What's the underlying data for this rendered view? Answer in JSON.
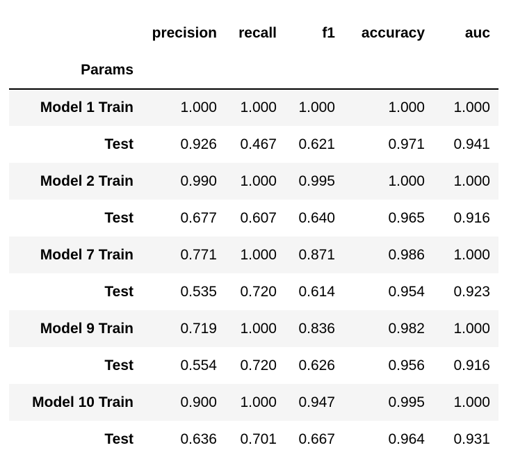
{
  "table": {
    "columns": [
      "precision",
      "recall",
      "f1",
      "accuracy",
      "auc"
    ],
    "index_name": "Params",
    "rows": [
      {
        "label": "Model 1 Train",
        "values": [
          "1.000",
          "1.000",
          "1.000",
          "1.000",
          "1.000"
        ]
      },
      {
        "label": "Test",
        "values": [
          "0.926",
          "0.467",
          "0.621",
          "0.971",
          "0.941"
        ]
      },
      {
        "label": "Model 2 Train",
        "values": [
          "0.990",
          "1.000",
          "0.995",
          "1.000",
          "1.000"
        ]
      },
      {
        "label": "Test",
        "values": [
          "0.677",
          "0.607",
          "0.640",
          "0.965",
          "0.916"
        ]
      },
      {
        "label": "Model 7 Train",
        "values": [
          "0.771",
          "1.000",
          "0.871",
          "0.986",
          "1.000"
        ]
      },
      {
        "label": "Test",
        "values": [
          "0.535",
          "0.720",
          "0.614",
          "0.954",
          "0.923"
        ]
      },
      {
        "label": "Model 9 Train",
        "values": [
          "0.719",
          "1.000",
          "0.836",
          "0.982",
          "1.000"
        ]
      },
      {
        "label": "Test",
        "values": [
          "0.554",
          "0.720",
          "0.626",
          "0.956",
          "0.916"
        ]
      },
      {
        "label": "Model 10 Train",
        "values": [
          "0.900",
          "1.000",
          "0.947",
          "0.995",
          "1.000"
        ]
      },
      {
        "label": "Test",
        "values": [
          "0.636",
          "0.701",
          "0.667",
          "0.964",
          "0.931"
        ]
      }
    ]
  },
  "colors": {
    "stripe": "#f5f5f5",
    "text": "#000000",
    "header_rule": "#000000"
  }
}
